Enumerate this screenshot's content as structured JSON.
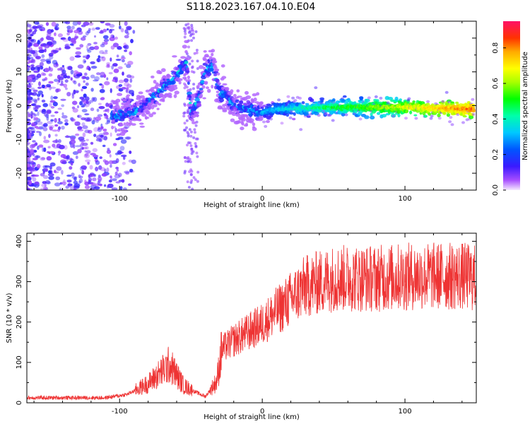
{
  "page_title": "S118.2023.167.04.10.E04",
  "chart_data": [
    {
      "type": "heatmap",
      "xlabel": "Height of straight line (km)",
      "ylabel": "Frequency (Hz)",
      "xlim": [
        -165,
        150
      ],
      "ylim": [
        -25,
        25
      ],
      "xticks": [
        -100,
        0,
        100
      ],
      "yticks": [
        -20,
        -10,
        0,
        10,
        20
      ],
      "colorbar": {
        "label": "Normalized spectral amplitude",
        "range": [
          0.0,
          0.95
        ],
        "ticks": [
          0.0,
          0.2,
          0.4,
          0.6,
          0.8
        ]
      },
      "ridge": [
        {
          "x": -100,
          "y": -3
        },
        {
          "x": -90,
          "y": -2
        },
        {
          "x": -80,
          "y": 1
        },
        {
          "x": -70,
          "y": 5
        },
        {
          "x": -60,
          "y": 9
        },
        {
          "x": -53,
          "y": 13
        },
        {
          "x": -50,
          "y": -2
        },
        {
          "x": -45,
          "y": 1
        },
        {
          "x": -40,
          "y": 10
        },
        {
          "x": -35,
          "y": 12
        },
        {
          "x": -30,
          "y": 4
        },
        {
          "x": -25,
          "y": 3
        },
        {
          "x": -20,
          "y": 0
        },
        {
          "x": -10,
          "y": -1
        },
        {
          "x": 0,
          "y": -2
        },
        {
          "x": 10,
          "y": -1
        },
        {
          "x": 50,
          "y": -0.5
        },
        {
          "x": 100,
          "y": -0.5
        },
        {
          "x": 145,
          "y": -1
        }
      ]
    },
    {
      "type": "line",
      "xlabel": "Height of straight line (km)",
      "ylabel": "SNR (10 * v/v)",
      "xlim": [
        -165,
        150
      ],
      "ylim": [
        0,
        420
      ],
      "xticks": [
        -100,
        0,
        100
      ],
      "yticks": [
        0,
        100,
        200,
        300,
        400
      ],
      "color": "#ee3333",
      "envelope": [
        {
          "x": -165,
          "y": 12
        },
        {
          "x": -110,
          "y": 12
        },
        {
          "x": -95,
          "y": 20
        },
        {
          "x": -80,
          "y": 45
        },
        {
          "x": -65,
          "y": 90
        },
        {
          "x": -55,
          "y": 40
        },
        {
          "x": -40,
          "y": 15
        },
        {
          "x": -32,
          "y": 50
        },
        {
          "x": -28,
          "y": 130
        },
        {
          "x": -20,
          "y": 150
        },
        {
          "x": -10,
          "y": 170
        },
        {
          "x": 0,
          "y": 190
        },
        {
          "x": 10,
          "y": 220
        },
        {
          "x": 20,
          "y": 250
        },
        {
          "x": 30,
          "y": 280
        },
        {
          "x": 50,
          "y": 300
        },
        {
          "x": 80,
          "y": 300
        },
        {
          "x": 110,
          "y": 305
        },
        {
          "x": 140,
          "y": 305
        },
        {
          "x": 150,
          "y": 300
        }
      ]
    }
  ]
}
